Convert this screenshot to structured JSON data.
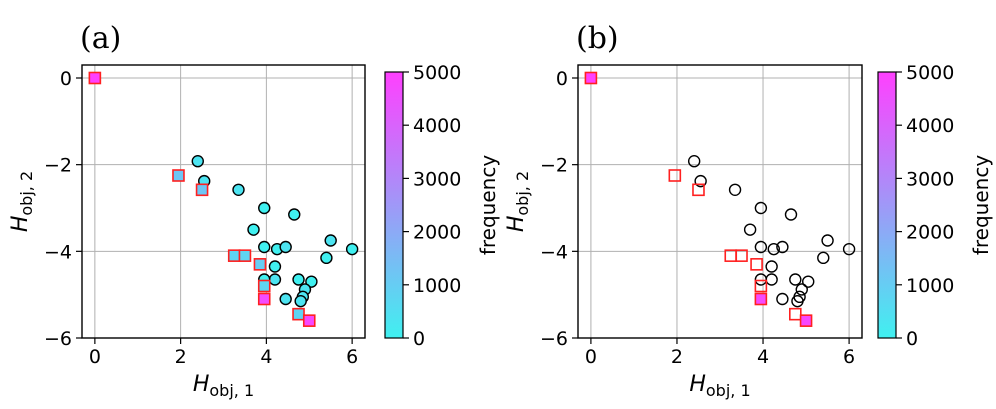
{
  "colors": {
    "cmap_low": "#40f0f0",
    "cmap_high": "#ff40ff",
    "square_edge": "#ff2020",
    "circle_edge": "#000000",
    "grid": "#b0b0b0"
  },
  "chart_data": [
    {
      "type": "scatter",
      "panel_label": "(a)",
      "xlabel": "H",
      "xlabel_sub": "obj, 1",
      "ylabel": "H",
      "ylabel_sub": "obj, 2",
      "xlim": [
        -0.3,
        6.3
      ],
      "ylim": [
        -6,
        0.3
      ],
      "xticks": [
        0,
        2,
        4,
        6
      ],
      "yticks": [
        0,
        -2,
        -4,
        -6
      ],
      "grid": true,
      "colorbar": {
        "label": "frequency",
        "range": [
          0,
          5000
        ],
        "ticks": [
          0,
          1000,
          2000,
          3000,
          4000,
          5000
        ]
      },
      "series": [
        {
          "name": "circles",
          "marker": "circle",
          "points": [
            {
              "x": 2.4,
              "y": -1.92,
              "freq": 350
            },
            {
              "x": 2.55,
              "y": -2.38,
              "freq": 350
            },
            {
              "x": 3.35,
              "y": -2.58,
              "freq": 350
            },
            {
              "x": 3.95,
              "y": -3.0,
              "freq": 0
            },
            {
              "x": 4.65,
              "y": -3.15,
              "freq": 0
            },
            {
              "x": 3.7,
              "y": -3.5,
              "freq": 0
            },
            {
              "x": 3.95,
              "y": -3.9,
              "freq": 0
            },
            {
              "x": 4.25,
              "y": -3.95,
              "freq": 0
            },
            {
              "x": 4.45,
              "y": -3.9,
              "freq": 350
            },
            {
              "x": 5.5,
              "y": -3.75,
              "freq": 350
            },
            {
              "x": 6.0,
              "y": -3.95,
              "freq": 0
            },
            {
              "x": 5.4,
              "y": -4.15,
              "freq": 0
            },
            {
              "x": 4.2,
              "y": -4.35,
              "freq": 0
            },
            {
              "x": 4.2,
              "y": -4.65,
              "freq": 350
            },
            {
              "x": 3.95,
              "y": -4.65,
              "freq": 0
            },
            {
              "x": 4.75,
              "y": -4.65,
              "freq": 0
            },
            {
              "x": 5.05,
              "y": -4.7,
              "freq": 0
            },
            {
              "x": 4.9,
              "y": -4.88,
              "freq": 350
            },
            {
              "x": 4.85,
              "y": -5.05,
              "freq": 350
            },
            {
              "x": 4.8,
              "y": -5.15,
              "freq": 350
            },
            {
              "x": 4.45,
              "y": -5.1,
              "freq": 350
            }
          ]
        },
        {
          "name": "squares",
          "marker": "square",
          "points": [
            {
              "x": 0.0,
              "y": 0.0,
              "freq": 5000
            },
            {
              "x": 1.95,
              "y": -2.25,
              "freq": 1200
            },
            {
              "x": 2.5,
              "y": -2.58,
              "freq": 1200
            },
            {
              "x": 3.25,
              "y": -4.1,
              "freq": 800
            },
            {
              "x": 3.5,
              "y": -4.1,
              "freq": 800
            },
            {
              "x": 3.85,
              "y": -4.3,
              "freq": 1000
            },
            {
              "x": 3.95,
              "y": -4.8,
              "freq": 800
            },
            {
              "x": 3.95,
              "y": -5.1,
              "freq": 4700
            },
            {
              "x": 4.75,
              "y": -5.45,
              "freq": 800
            },
            {
              "x": 5.0,
              "y": -5.6,
              "freq": 4800
            }
          ]
        }
      ]
    },
    {
      "type": "scatter",
      "panel_label": "(b)",
      "xlabel": "H",
      "xlabel_sub": "obj, 1",
      "ylabel": "H",
      "ylabel_sub": "obj, 2",
      "xlim": [
        -0.3,
        6.3
      ],
      "ylim": [
        -6,
        0.3
      ],
      "xticks": [
        0,
        2,
        4,
        6
      ],
      "yticks": [
        0,
        -2,
        -4,
        -6
      ],
      "grid": true,
      "colorbar": {
        "label": "frequency",
        "range": [
          0,
          5000
        ],
        "ticks": [
          0,
          1000,
          2000,
          3000,
          4000,
          5000
        ]
      },
      "series": [
        {
          "name": "circles",
          "marker": "circle",
          "points": [
            {
              "x": 2.4,
              "y": -1.92,
              "freq": null
            },
            {
              "x": 2.55,
              "y": -2.38,
              "freq": null
            },
            {
              "x": 3.35,
              "y": -2.58,
              "freq": null
            },
            {
              "x": 3.95,
              "y": -3.0,
              "freq": null
            },
            {
              "x": 4.65,
              "y": -3.15,
              "freq": null
            },
            {
              "x": 3.7,
              "y": -3.5,
              "freq": null
            },
            {
              "x": 3.95,
              "y": -3.9,
              "freq": null
            },
            {
              "x": 4.25,
              "y": -3.95,
              "freq": null
            },
            {
              "x": 4.45,
              "y": -3.9,
              "freq": null
            },
            {
              "x": 5.5,
              "y": -3.75,
              "freq": null
            },
            {
              "x": 6.0,
              "y": -3.95,
              "freq": null
            },
            {
              "x": 5.4,
              "y": -4.15,
              "freq": null
            },
            {
              "x": 4.2,
              "y": -4.35,
              "freq": null
            },
            {
              "x": 4.2,
              "y": -4.65,
              "freq": null
            },
            {
              "x": 3.95,
              "y": -4.65,
              "freq": null
            },
            {
              "x": 4.75,
              "y": -4.65,
              "freq": null
            },
            {
              "x": 5.05,
              "y": -4.7,
              "freq": null
            },
            {
              "x": 4.9,
              "y": -4.88,
              "freq": null
            },
            {
              "x": 4.85,
              "y": -5.05,
              "freq": null
            },
            {
              "x": 4.8,
              "y": -5.15,
              "freq": null
            },
            {
              "x": 4.45,
              "y": -5.1,
              "freq": null
            }
          ]
        },
        {
          "name": "squares",
          "marker": "square",
          "points": [
            {
              "x": 0.0,
              "y": 0.0,
              "freq": 5000
            },
            {
              "x": 1.95,
              "y": -2.25,
              "freq": null
            },
            {
              "x": 2.5,
              "y": -2.58,
              "freq": null
            },
            {
              "x": 3.25,
              "y": -4.1,
              "freq": null
            },
            {
              "x": 3.5,
              "y": -4.1,
              "freq": null
            },
            {
              "x": 3.85,
              "y": -4.3,
              "freq": null
            },
            {
              "x": 3.95,
              "y": -4.8,
              "freq": null
            },
            {
              "x": 3.95,
              "y": -5.1,
              "freq": 4700
            },
            {
              "x": 4.75,
              "y": -5.45,
              "freq": null
            },
            {
              "x": 5.0,
              "y": -5.6,
              "freq": 4800
            }
          ]
        }
      ]
    }
  ]
}
